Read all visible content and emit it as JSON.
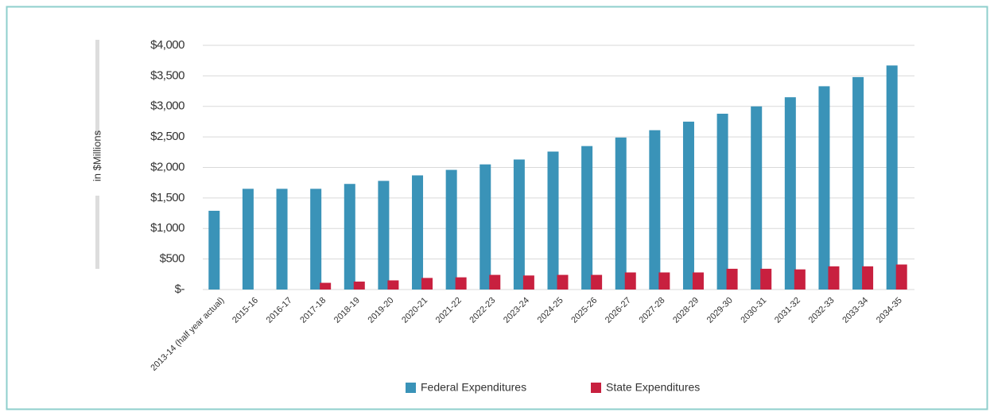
{
  "chart_data": {
    "type": "bar",
    "y_label": "in $Millions",
    "categories": [
      "2013-14 (half year actual)",
      "2015-16",
      "2016-17",
      "2017-18",
      "2018-19",
      "2019-20",
      "2020-21",
      "2021-22",
      "2022-23",
      "2023-24",
      "2024-25",
      "2025-26",
      "2026-27",
      "2027-28",
      "2028-29",
      "2029-30",
      "2030-31",
      "2031-32",
      "2032-33",
      "2033-34",
      "2034-35"
    ],
    "series": [
      {
        "name": "Federal Expenditures",
        "color": "#3a93b8",
        "values": [
          1290,
          1650,
          1650,
          1650,
          1730,
          1780,
          1870,
          1960,
          2050,
          2130,
          2260,
          2350,
          2490,
          2610,
          2750,
          2880,
          3000,
          3150,
          3330,
          3480,
          3670
        ]
      },
      {
        "name": "State Expenditures",
        "color": "#c8203f",
        "values": [
          0,
          0,
          0,
          110,
          130,
          150,
          190,
          200,
          240,
          230,
          240,
          240,
          280,
          280,
          280,
          340,
          340,
          330,
          380,
          380,
          410
        ]
      }
    ],
    "ylim": [
      0,
      4000
    ],
    "yticks": [
      {
        "value": 0,
        "label": "$-"
      },
      {
        "value": 500,
        "label": "$500"
      },
      {
        "value": 1000,
        "label": "$1,000"
      },
      {
        "value": 1500,
        "label": "$1,500"
      },
      {
        "value": 2000,
        "label": "$2,000"
      },
      {
        "value": 2500,
        "label": "$2,500"
      },
      {
        "value": 3000,
        "label": "$3,000"
      },
      {
        "value": 3500,
        "label": "$3,500"
      },
      {
        "value": 4000,
        "label": "$4,000"
      }
    ],
    "grid": true,
    "legend": "bottom"
  }
}
